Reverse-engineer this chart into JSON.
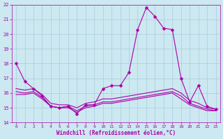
{
  "xlabel": "Windchill (Refroidissement éolien,°C)",
  "xlim": [
    -0.5,
    23.5
  ],
  "ylim": [
    14,
    22
  ],
  "yticks": [
    14,
    15,
    16,
    17,
    18,
    19,
    20,
    21,
    22
  ],
  "xticks": [
    0,
    1,
    2,
    3,
    4,
    5,
    6,
    7,
    8,
    9,
    10,
    11,
    12,
    13,
    14,
    15,
    16,
    17,
    18,
    19,
    20,
    21,
    22,
    23
  ],
  "bg_color": "#cce8f0",
  "grid_color": "#aaccdd",
  "line_color": "#aa00aa",
  "series_main": [
    18.0,
    16.8,
    16.3,
    15.8,
    15.1,
    15.0,
    15.1,
    14.6,
    15.2,
    15.2,
    16.3,
    16.5,
    16.5,
    17.4,
    20.3,
    21.8,
    21.2,
    20.4,
    20.3,
    17.0,
    15.4,
    16.5,
    15.1,
    14.9
  ],
  "series_flat1": [
    16.3,
    16.2,
    16.3,
    15.9,
    15.3,
    15.2,
    15.2,
    15.0,
    15.3,
    15.4,
    15.6,
    15.6,
    15.7,
    15.8,
    15.9,
    16.0,
    16.1,
    16.2,
    16.3,
    16.0,
    15.5,
    15.3,
    15.0,
    14.9
  ],
  "series_flat2": [
    16.1,
    16.0,
    16.1,
    15.7,
    15.1,
    15.0,
    15.1,
    14.8,
    15.1,
    15.2,
    15.4,
    15.4,
    15.5,
    15.6,
    15.7,
    15.8,
    15.9,
    16.0,
    16.1,
    15.8,
    15.3,
    15.1,
    14.9,
    14.8
  ],
  "series_flat3": [
    15.9,
    15.9,
    16.0,
    15.6,
    15.1,
    15.0,
    15.0,
    14.7,
    15.0,
    15.1,
    15.3,
    15.3,
    15.4,
    15.5,
    15.6,
    15.7,
    15.8,
    15.9,
    16.0,
    15.6,
    15.2,
    15.0,
    14.8,
    14.8
  ]
}
